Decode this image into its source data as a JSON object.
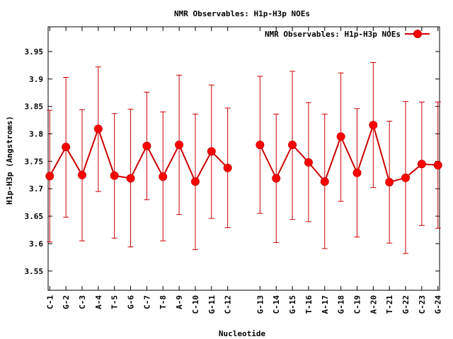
{
  "chart_data": {
    "type": "line",
    "title": "NMR Observables: H1p-H3p NOEs",
    "xlabel": "Nucleotide",
    "ylabel": "H1p-H3p (Angstroms)",
    "ylim": [
      3.515,
      3.995
    ],
    "yticks": [
      3.55,
      3.6,
      3.65,
      3.7,
      3.75,
      3.8,
      3.85,
      3.9,
      3.95
    ],
    "grid": false,
    "legend_position": "top-right",
    "series": [
      {
        "name": "NMR Observables: H1p-H3p NOEs",
        "color": "#cc0000",
        "points": [
          {
            "x": 1,
            "label": "C-1",
            "y": 3.723,
            "err_low": 3.603,
            "err_high": 3.843
          },
          {
            "x": 2,
            "label": "G-2",
            "y": 3.776,
            "err_low": 3.648,
            "err_high": 3.903
          },
          {
            "x": 3,
            "label": "C-3",
            "y": 3.725,
            "err_low": 3.605,
            "err_high": 3.844
          },
          {
            "x": 4,
            "label": "A-4",
            "y": 3.809,
            "err_low": 3.695,
            "err_high": 3.922
          },
          {
            "x": 5,
            "label": "T-5",
            "y": 3.724,
            "err_low": 3.61,
            "err_high": 3.837
          },
          {
            "x": 6,
            "label": "G-6",
            "y": 3.719,
            "err_low": 3.594,
            "err_high": 3.845
          },
          {
            "x": 7,
            "label": "C-7",
            "y": 3.778,
            "err_low": 3.68,
            "err_high": 3.876
          },
          {
            "x": 8,
            "label": "T-8",
            "y": 3.722,
            "err_low": 3.605,
            "err_high": 3.84
          },
          {
            "x": 9,
            "label": "A-9",
            "y": 3.78,
            "err_low": 3.653,
            "err_high": 3.907
          },
          {
            "x": 10,
            "label": "C-10",
            "y": 3.713,
            "err_low": 3.589,
            "err_high": 3.836
          },
          {
            "x": 11,
            "label": "G-11",
            "y": 3.768,
            "err_low": 3.646,
            "err_high": 3.889
          },
          {
            "x": 12,
            "label": "C-12",
            "y": 3.738,
            "err_low": 3.629,
            "err_high": 3.847
          },
          {
            "x": 14,
            "label": "G-13",
            "y": 3.78,
            "err_low": 3.655,
            "err_high": 3.905
          },
          {
            "x": 15,
            "label": "C-14",
            "y": 3.719,
            "err_low": 3.602,
            "err_high": 3.836
          },
          {
            "x": 16,
            "label": "G-15",
            "y": 3.78,
            "err_low": 3.644,
            "err_high": 3.914
          },
          {
            "x": 17,
            "label": "T-16",
            "y": 3.748,
            "err_low": 3.64,
            "err_high": 3.857
          },
          {
            "x": 18,
            "label": "A-17",
            "y": 3.713,
            "err_low": 3.591,
            "err_high": 3.836
          },
          {
            "x": 19,
            "label": "G-18",
            "y": 3.795,
            "err_low": 3.677,
            "err_high": 3.911
          },
          {
            "x": 20,
            "label": "C-19",
            "y": 3.729,
            "err_low": 3.612,
            "err_high": 3.846
          },
          {
            "x": 21,
            "label": "A-20",
            "y": 3.816,
            "err_low": 3.702,
            "err_high": 3.93
          },
          {
            "x": 22,
            "label": "T-21",
            "y": 3.712,
            "err_low": 3.601,
            "err_high": 3.823
          },
          {
            "x": 23,
            "label": "G-22",
            "y": 3.72,
            "err_low": 3.582,
            "err_high": 3.859
          },
          {
            "x": 24,
            "label": "C-23",
            "y": 3.745,
            "err_low": 3.633,
            "err_high": 3.858
          },
          {
            "x": 25,
            "label": "G-24",
            "y": 3.743,
            "err_low": 3.628,
            "err_high": 3.858
          }
        ]
      }
    ]
  }
}
